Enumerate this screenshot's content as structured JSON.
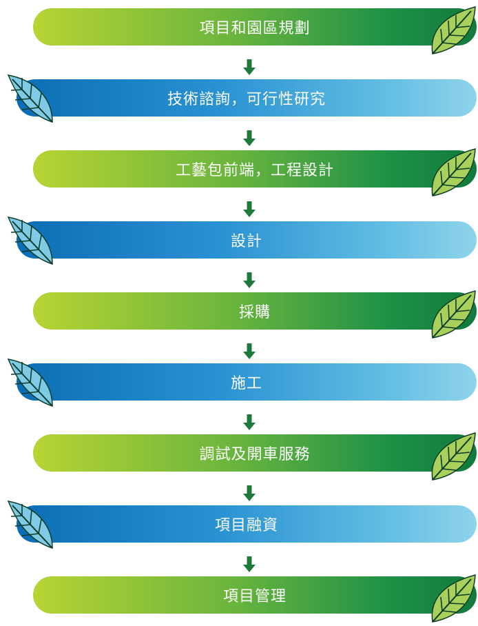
{
  "steps": [
    {
      "label": "項目和園區規劃",
      "style": "green"
    },
    {
      "label": "技術諮詢，可行性研究",
      "style": "blue"
    },
    {
      "label": "工藝包前端，工程設計",
      "style": "green"
    },
    {
      "label": "設計",
      "style": "blue"
    },
    {
      "label": "採購",
      "style": "green"
    },
    {
      "label": "施工",
      "style": "blue"
    },
    {
      "label": "調試及開車服務",
      "style": "green"
    },
    {
      "label": "項目融資",
      "style": "blue"
    },
    {
      "label": "項目管理",
      "style": "green"
    }
  ],
  "colors": {
    "green_start": "#b7d433",
    "green_end": "#117a3d",
    "blue_start": "#0a6db5",
    "blue_end": "#8fd4ea",
    "arrow": "#1d7a3a",
    "green_leaf": "#a9d05a",
    "blue_leaf": "#7fcbe6",
    "leaf_vein": "#0d3b2a"
  },
  "icons": {
    "arrow": "down-arrow-icon",
    "green_leaf": "green-leaf-icon",
    "blue_leaf": "blue-leaf-icon"
  }
}
